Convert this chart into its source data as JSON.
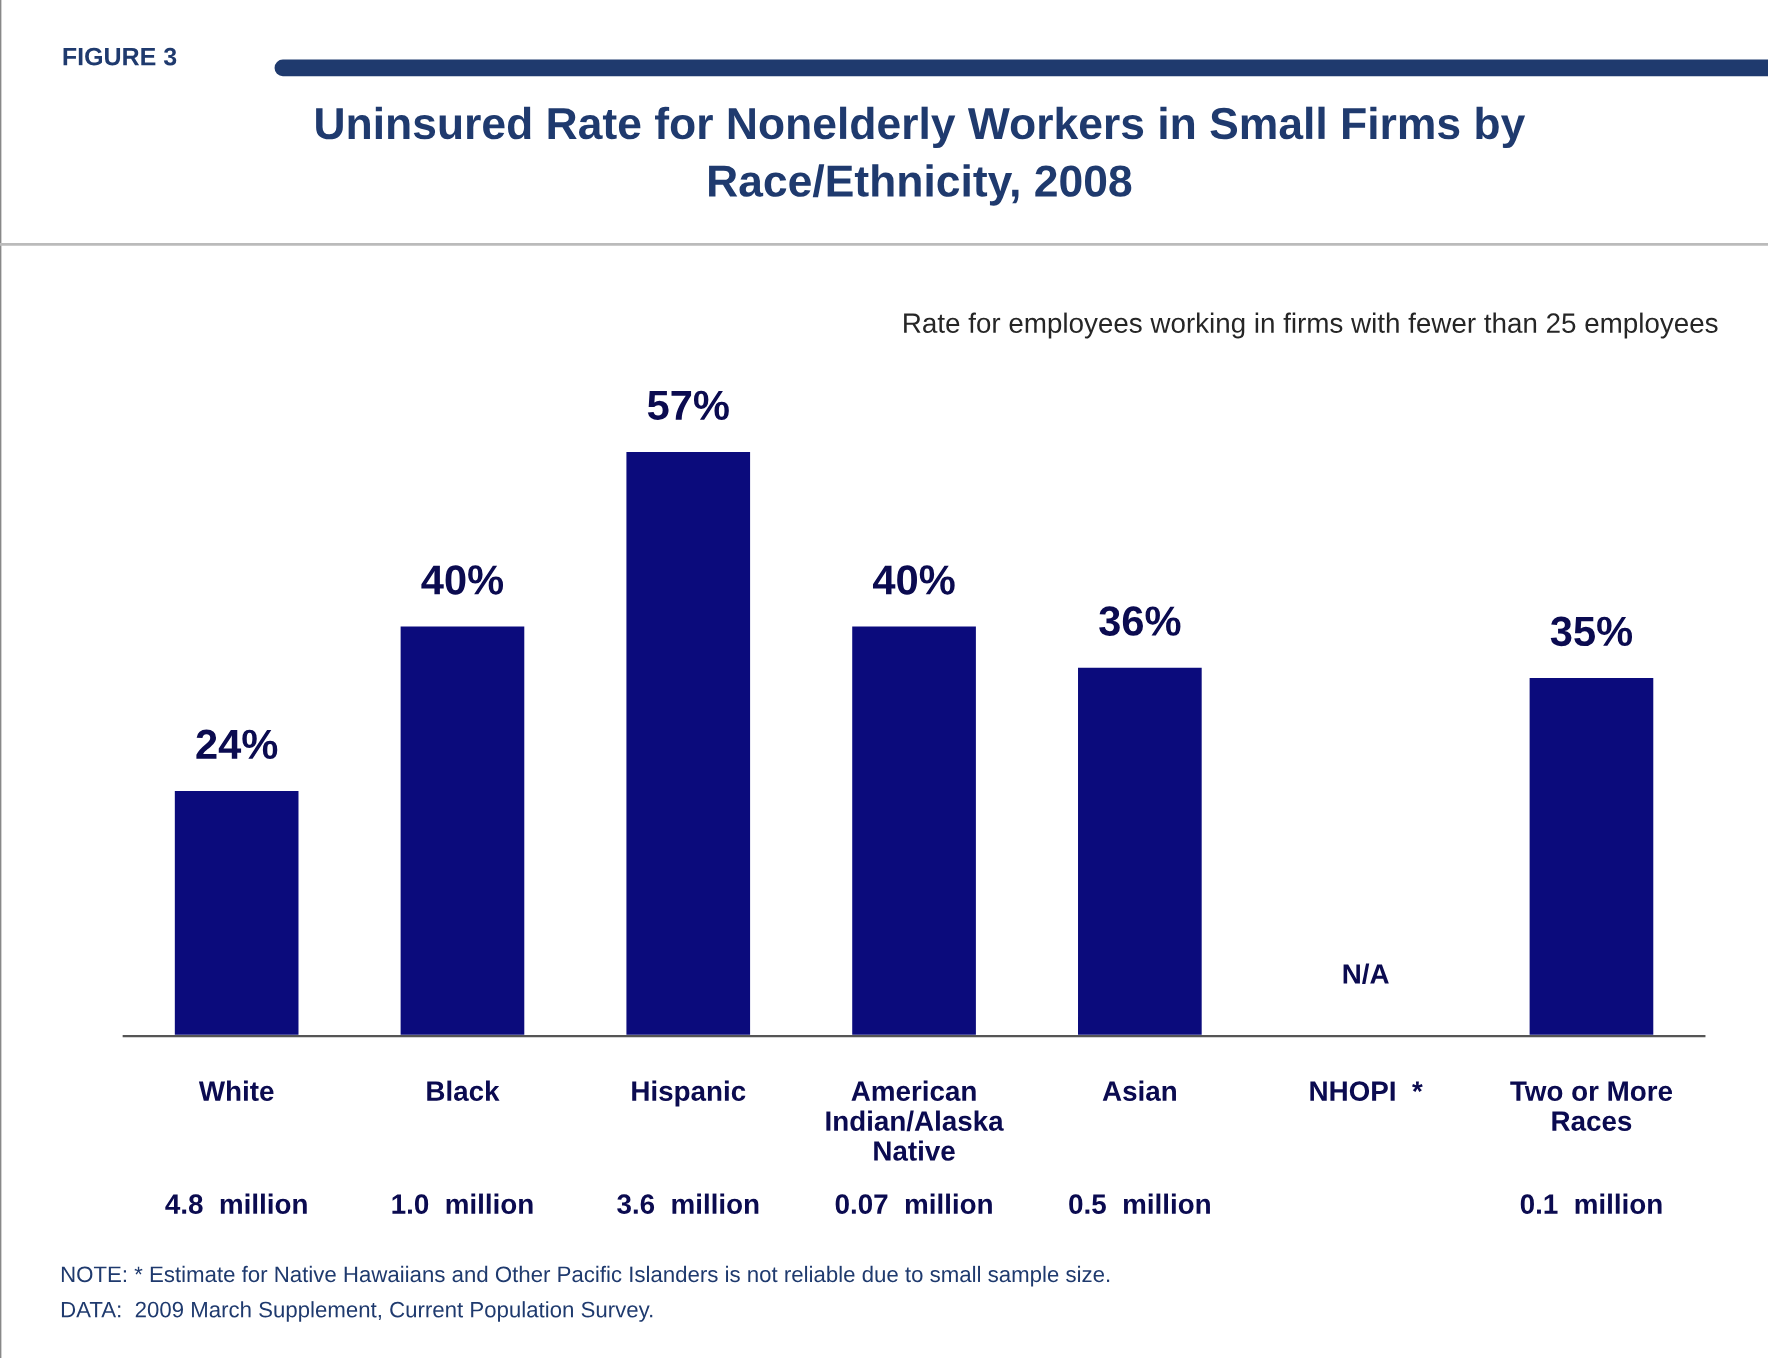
{
  "chart_data": {
    "type": "bar",
    "title": "Uninsured Rate for Nonelderly Workers in Small Firms by\nRace/Ethnicity, 2008",
    "subtitle": "Rate for employees working in firms with fewer than 25 employees",
    "categories": [
      "White",
      "Black",
      "Hispanic",
      "American\nIndian/Alaska\nNative",
      "Asian",
      "NHOPI  *",
      "Two or More\nRaces"
    ],
    "values": [
      24,
      40,
      57,
      40,
      36,
      null,
      35
    ],
    "color": "#0b0b7c",
    "value_labels": [
      "24%",
      "40%",
      "57%",
      "40%",
      "36%",
      null,
      "35%"
    ],
    "annotations": [
      "FIGURE 3",
      "N/A",
      "4.8  million",
      "1.0  million",
      "3.6  million",
      "0.07  million",
      "0.5  million",
      "0.1  million",
      "NOTE: * Estimate for Native Hawaiians and Other Pacific Islanders is not reliable due to small sample size.",
      "DATA:  2009 March Supplement, Current Population Survey."
    ]
  }
}
